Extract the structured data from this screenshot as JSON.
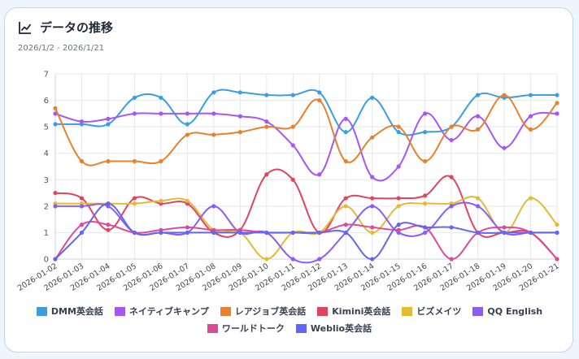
{
  "header": {
    "title": "データの推移",
    "subtitle": "2026/1/2 - 2026/1/21",
    "icon": "line-chart-icon"
  },
  "chart_data": {
    "type": "line",
    "title": "データの推移",
    "ylim": [
      0,
      7
    ],
    "yticks": [
      0,
      1,
      2,
      3,
      4,
      5,
      6,
      7
    ],
    "grid": true,
    "legend_position": "bottom",
    "categories": [
      "2026-01-02",
      "2026-01-03",
      "2026-01-04",
      "2026-01-05",
      "2026-01-06",
      "2026-01-07",
      "2026-01-08",
      "2026-01-09",
      "2026-01-10",
      "2026-01-11",
      "2026-01-12",
      "2026-01-13",
      "2026-01-14",
      "2026-01-15",
      "2026-01-16",
      "2026-01-17",
      "2026-01-18",
      "2026-01-19",
      "2026-01-20",
      "2026-01-21"
    ],
    "series": [
      {
        "name": "DMM英会話",
        "color": "#3b9ee0",
        "values": [
          5.1,
          5.1,
          5.1,
          6.1,
          6.1,
          5.1,
          6.3,
          6.3,
          6.2,
          6.2,
          6.3,
          4.8,
          6.1,
          4.8,
          4.8,
          5.0,
          6.2,
          6.1,
          6.2,
          6.2
        ]
      },
      {
        "name": "ネイティブキャンプ",
        "color": "#a855f7",
        "values": [
          5.5,
          5.2,
          5.3,
          5.5,
          5.5,
          5.5,
          5.5,
          5.4,
          5.2,
          4.3,
          3.2,
          5.3,
          3.1,
          3.5,
          5.5,
          4.5,
          5.4,
          4.2,
          5.4,
          5.5
        ]
      },
      {
        "name": "レアジョブ英会話",
        "color": "#e8812e",
        "values": [
          5.7,
          3.7,
          3.7,
          3.7,
          3.7,
          4.7,
          4.7,
          4.8,
          5.0,
          5.0,
          6.0,
          3.7,
          4.6,
          5.0,
          3.7,
          5.0,
          4.9,
          6.2,
          4.9,
          5.9
        ]
      },
      {
        "name": "Kimini英会話",
        "color": "#e0455f",
        "values": [
          2.5,
          2.3,
          1.1,
          2.3,
          2.1,
          2.1,
          1.0,
          1.1,
          3.2,
          3.0,
          1.0,
          2.3,
          2.3,
          2.3,
          2.4,
          3.1,
          1.0,
          1.0,
          1.0,
          0.0
        ]
      },
      {
        "name": "ビズメイツ",
        "color": "#e3bb34",
        "values": [
          2.1,
          2.1,
          2.1,
          2.1,
          2.2,
          2.2,
          1.1,
          1.0,
          0.0,
          1.0,
          1.0,
          2.0,
          1.0,
          2.0,
          2.1,
          2.1,
          2.3,
          1.0,
          2.3,
          1.3
        ]
      },
      {
        "name": "QQ English",
        "color": "#8b5cf6",
        "values": [
          2.0,
          2.0,
          2.0,
          1.0,
          1.0,
          1.0,
          2.0,
          1.0,
          1.0,
          0.0,
          0.0,
          1.0,
          2.0,
          1.0,
          1.0,
          2.0,
          2.0,
          1.0,
          1.0,
          1.0
        ]
      },
      {
        "name": "ワールドトーク",
        "color": "#db4b9a",
        "values": [
          0.0,
          1.3,
          1.3,
          1.0,
          1.1,
          1.2,
          1.1,
          1.1,
          1.0,
          1.0,
          1.0,
          1.3,
          1.2,
          1.1,
          1.2,
          0.0,
          1.0,
          1.2,
          1.0,
          0.0
        ]
      },
      {
        "name": "Weblio英会話",
        "color": "#6366f1",
        "values": [
          0.0,
          1.0,
          2.1,
          1.0,
          1.0,
          1.0,
          1.0,
          1.0,
          1.0,
          1.0,
          1.0,
          1.0,
          0.0,
          1.3,
          1.2,
          1.2,
          1.0,
          1.0,
          1.0,
          1.0
        ]
      }
    ]
  }
}
